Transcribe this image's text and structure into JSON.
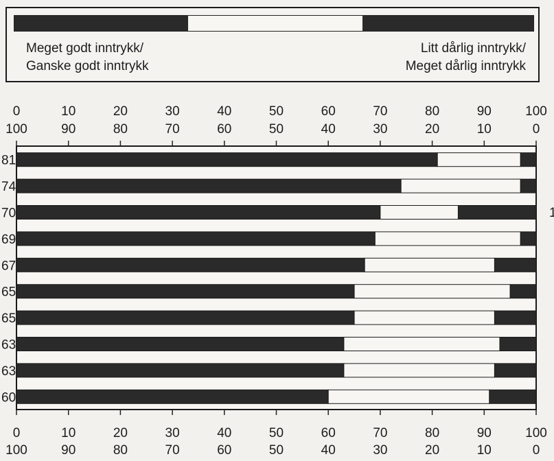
{
  "legend": {
    "left_label_line1": "Meget godt inntrykk/",
    "left_label_line2": "Ganske godt inntrykk",
    "right_label_line1": "Litt dårlig inntrykk/",
    "right_label_line2": "Meget dårlig inntrykk"
  },
  "colors": {
    "positive": "#2a2a2a",
    "neutral": "#f7f6f3",
    "negative": "#2a2a2a",
    "frame": "#1a1a1a"
  },
  "chart_data": {
    "type": "bar",
    "orientation": "horizontal",
    "stacked": true,
    "xlim": [
      0,
      100
    ],
    "x_ticks_top": [
      "0",
      "10",
      "20",
      "30",
      "40",
      "50",
      "60",
      "70",
      "80",
      "90",
      "100"
    ],
    "x_ticks_top_reverse": [
      "100",
      "90",
      "80",
      "70",
      "60",
      "50",
      "40",
      "30",
      "20",
      "10",
      "0"
    ],
    "x_ticks_bottom": [
      "0",
      "10",
      "20",
      "30",
      "40",
      "50",
      "60",
      "70",
      "80",
      "90",
      "100"
    ],
    "x_ticks_bottom_reverse": [
      "100",
      "90",
      "80",
      "70",
      "60",
      "50",
      "40",
      "30",
      "20",
      "10",
      "0"
    ],
    "category_labels": [
      "81",
      "74",
      "70",
      "69",
      "67",
      "65",
      "65",
      "63",
      "63",
      "60"
    ],
    "extra_right_label": "1",
    "series": [
      {
        "values": [
          81,
          74,
          70,
          69,
          67,
          65,
          65,
          63,
          63,
          60
        ]
      },
      {
        "values": [
          16,
          23,
          15,
          28,
          25,
          30,
          27,
          30,
          29,
          31
        ]
      },
      {
        "values": [
          3,
          3,
          15,
          3,
          8,
          5,
          8,
          7,
          8,
          9
        ]
      }
    ]
  }
}
